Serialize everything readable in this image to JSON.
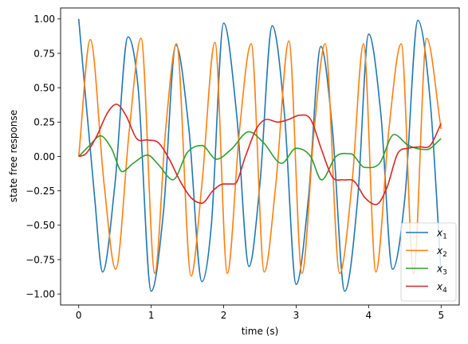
{
  "chart_data": {
    "type": "line",
    "title": "",
    "xlabel": "time (s)",
    "ylabel": "state free response",
    "xlim": [
      -0.25,
      5.25
    ],
    "ylim": [
      -1.08,
      1.08
    ],
    "xticks": [
      0,
      1,
      2,
      3,
      4,
      5
    ],
    "xtick_labels": [
      "0",
      "1",
      "2",
      "3",
      "4",
      "5"
    ],
    "yticks": [
      -1.0,
      -0.75,
      -0.5,
      -0.25,
      0.0,
      0.25,
      0.5,
      0.75,
      1.0
    ],
    "ytick_labels": [
      "−1.00",
      "−0.75",
      "−0.50",
      "−0.25",
      "0.00",
      "0.25",
      "0.50",
      "0.75",
      "1.00"
    ],
    "grid": false,
    "legend_position": "lower-right",
    "series": [
      {
        "name": "x1",
        "label_base": "x",
        "label_sub": "1",
        "color": "#1f77b4",
        "x": [
          0,
          0.22,
          0.33,
          0.5,
          0.68,
          0.82,
          1.0,
          1.17,
          1.34,
          1.52,
          1.7,
          1.83,
          2.0,
          2.18,
          2.35,
          2.5,
          2.67,
          2.84,
          3.0,
          3.17,
          3.34,
          3.5,
          3.67,
          3.85,
          4.0,
          4.17,
          4.33,
          4.5,
          4.68,
          4.85,
          5.0
        ],
        "values": [
          1.0,
          -0.3,
          -0.84,
          -0.2,
          0.87,
          0.5,
          -0.98,
          -0.4,
          0.81,
          0.2,
          -0.91,
          -0.5,
          0.97,
          0.3,
          -0.8,
          -0.2,
          0.95,
          0.3,
          -0.93,
          -0.3,
          0.8,
          0.2,
          -0.98,
          -0.3,
          0.89,
          0.3,
          -0.82,
          -0.3,
          0.99,
          0.4,
          -0.85
        ]
      },
      {
        "name": "x2",
        "label_base": "x",
        "label_sub": "2",
        "color": "#ff7f0e",
        "x": [
          0,
          0.16,
          0.35,
          0.51,
          0.7,
          0.86,
          1.05,
          1.2,
          1.35,
          1.55,
          1.7,
          1.88,
          2.05,
          2.22,
          2.38,
          2.56,
          2.72,
          2.9,
          3.08,
          3.25,
          3.4,
          3.6,
          3.77,
          3.93,
          4.1,
          4.28,
          4.45,
          4.62,
          4.8,
          5.0
        ],
        "values": [
          0.0,
          0.85,
          -0.2,
          -0.82,
          0.2,
          0.86,
          -0.85,
          0.2,
          0.82,
          -0.87,
          -0.2,
          0.83,
          -0.85,
          0.2,
          0.82,
          -0.84,
          -0.2,
          0.84,
          -0.85,
          0.2,
          0.82,
          -0.85,
          -0.2,
          0.82,
          -0.84,
          0.2,
          0.82,
          -0.85,
          0.86,
          0.2
        ]
      },
      {
        "name": "x3",
        "label_base": "x",
        "label_sub": "3",
        "color": "#2ca02c",
        "x": [
          0,
          0.15,
          0.3,
          0.45,
          0.6,
          0.75,
          0.95,
          1.1,
          1.3,
          1.5,
          1.7,
          1.9,
          2.1,
          2.35,
          2.55,
          2.8,
          3.0,
          3.2,
          3.35,
          3.55,
          3.75,
          3.95,
          4.15,
          4.35,
          4.55,
          4.8,
          5.0
        ],
        "values": [
          0.0,
          0.08,
          0.15,
          0.06,
          -0.11,
          -0.05,
          0.01,
          -0.06,
          -0.17,
          0.03,
          0.08,
          -0.02,
          0.05,
          0.18,
          0.1,
          -0.05,
          0.06,
          0.0,
          -0.17,
          0.0,
          0.02,
          -0.08,
          -0.05,
          0.16,
          0.08,
          0.05,
          0.13
        ]
      },
      {
        "name": "x4",
        "label_base": "x",
        "label_sub": "4",
        "color": "#d62728",
        "x": [
          0,
          0.1,
          0.25,
          0.4,
          0.52,
          0.65,
          0.8,
          0.95,
          1.1,
          1.25,
          1.4,
          1.55,
          1.7,
          1.85,
          2.0,
          2.15,
          2.3,
          2.45,
          2.6,
          2.75,
          2.9,
          3.05,
          3.2,
          3.35,
          3.5,
          3.65,
          3.8,
          3.95,
          4.1,
          4.25,
          4.4,
          4.55,
          4.7,
          4.85,
          5.0
        ],
        "values": [
          0.0,
          0.02,
          0.15,
          0.32,
          0.38,
          0.3,
          0.13,
          0.12,
          0.1,
          -0.02,
          -0.18,
          -0.3,
          -0.34,
          -0.25,
          -0.2,
          -0.2,
          0.0,
          0.2,
          0.27,
          0.25,
          0.27,
          0.3,
          0.27,
          0.05,
          -0.15,
          -0.17,
          -0.18,
          -0.3,
          -0.35,
          -0.23,
          0.02,
          0.06,
          0.07,
          0.08,
          0.24
        ]
      }
    ]
  }
}
